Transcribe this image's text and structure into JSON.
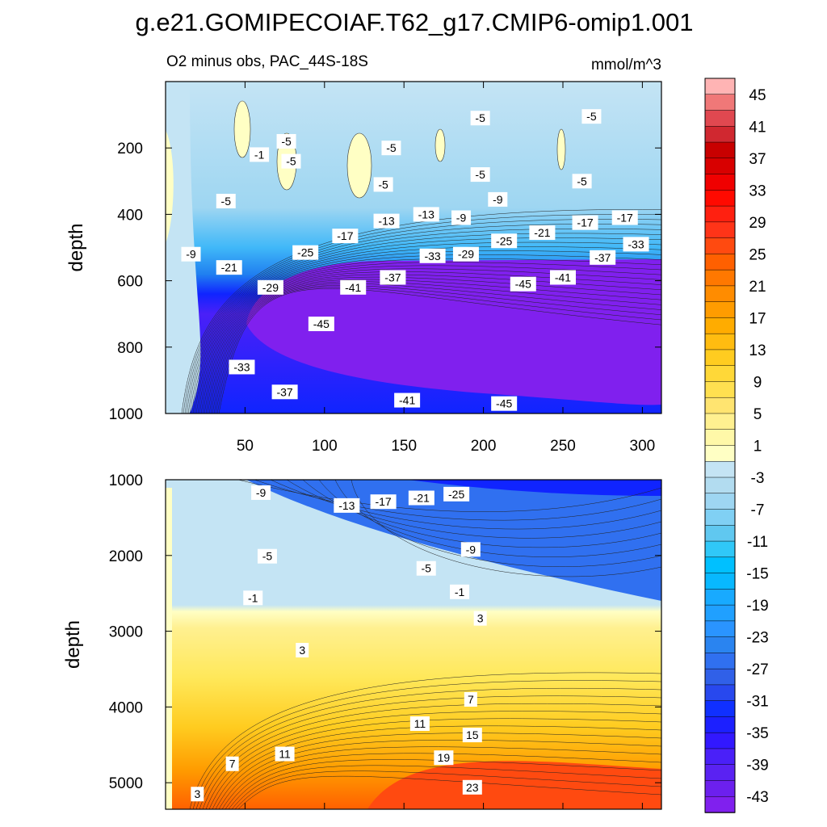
{
  "title": "g.e21.GOMIPECOIAF.T62_g17.CMIP6-omip1.001",
  "panel_left_label": "O2 minus obs, PAC_44S-18S",
  "units_label": "mmol/m^3",
  "colors": {
    "deep_purple": "#8020ee",
    "blue": "#1024ff",
    "light_blue": "#c4e4f4",
    "light_yellow": "#ffffc4",
    "yellow": "#ffe85a",
    "orange": "#ff8c00",
    "red_orange": "#ff4a10"
  },
  "chart_data": [
    {
      "type": "contour",
      "panel": "upper",
      "ylabel": "depth",
      "xlabel": "",
      "xlim": [
        0,
        312
      ],
      "ylim": [
        0,
        1000
      ],
      "y_inverted": true,
      "xticks": [
        50,
        100,
        150,
        200,
        250,
        300
      ],
      "yticks": [
        200,
        400,
        600,
        800,
        1000
      ],
      "contour_labels": [
        {
          "value": "-5",
          "x": 198,
          "y": 110
        },
        {
          "value": "-5",
          "x": 268,
          "y": 105
        },
        {
          "value": "-5",
          "x": 76,
          "y": 180
        },
        {
          "value": "-1",
          "x": 59,
          "y": 220
        },
        {
          "value": "-5",
          "x": 79,
          "y": 240
        },
        {
          "value": "-5",
          "x": 142,
          "y": 200
        },
        {
          "value": "-5",
          "x": 198,
          "y": 280
        },
        {
          "value": "-5",
          "x": 137,
          "y": 310
        },
        {
          "value": "-5",
          "x": 262,
          "y": 300
        },
        {
          "value": "-5",
          "x": 38,
          "y": 360
        },
        {
          "value": "-9",
          "x": 209,
          "y": 355
        },
        {
          "value": "-13",
          "x": 139,
          "y": 420
        },
        {
          "value": "-13",
          "x": 164,
          "y": 400
        },
        {
          "value": "-9",
          "x": 186,
          "y": 410
        },
        {
          "value": "-17",
          "x": 113,
          "y": 465
        },
        {
          "value": "-21",
          "x": 237,
          "y": 455
        },
        {
          "value": "-17",
          "x": 264,
          "y": 425
        },
        {
          "value": "-17",
          "x": 289,
          "y": 410
        },
        {
          "value": "-9",
          "x": 16,
          "y": 520
        },
        {
          "value": "-21",
          "x": 40,
          "y": 560
        },
        {
          "value": "-25",
          "x": 88,
          "y": 515
        },
        {
          "value": "-25",
          "x": 213,
          "y": 480
        },
        {
          "value": "-33",
          "x": 168,
          "y": 525
        },
        {
          "value": "-29",
          "x": 189,
          "y": 520
        },
        {
          "value": "-33",
          "x": 296,
          "y": 490
        },
        {
          "value": "-37",
          "x": 275,
          "y": 530
        },
        {
          "value": "-29",
          "x": 66,
          "y": 620
        },
        {
          "value": "-41",
          "x": 118,
          "y": 620
        },
        {
          "value": "-37",
          "x": 143,
          "y": 590
        },
        {
          "value": "-45",
          "x": 225,
          "y": 610
        },
        {
          "value": "-41",
          "x": 250,
          "y": 590
        },
        {
          "value": "-45",
          "x": 98,
          "y": 730
        },
        {
          "value": "-33",
          "x": 48,
          "y": 860
        },
        {
          "value": "-37",
          "x": 75,
          "y": 935
        },
        {
          "value": "-41",
          "x": 152,
          "y": 960
        },
        {
          "value": "-45",
          "x": 213,
          "y": 970
        }
      ]
    },
    {
      "type": "contour",
      "panel": "lower",
      "ylabel": "depth",
      "xlabel": "",
      "xlim": [
        0,
        312
      ],
      "ylim": [
        1000,
        5350
      ],
      "y_inverted": true,
      "yticks": [
        1000,
        2000,
        3000,
        4000,
        5000
      ],
      "contour_labels": [
        {
          "value": "-9",
          "x": 60,
          "y": 1170
        },
        {
          "value": "-13",
          "x": 114,
          "y": 1340
        },
        {
          "value": "-17",
          "x": 137,
          "y": 1290
        },
        {
          "value": "-21",
          "x": 161,
          "y": 1240
        },
        {
          "value": "-25",
          "x": 183,
          "y": 1190
        },
        {
          "value": "-5",
          "x": 64,
          "y": 2010
        },
        {
          "value": "-5",
          "x": 164,
          "y": 2170
        },
        {
          "value": "-9",
          "x": 192,
          "y": 1920
        },
        {
          "value": "-1",
          "x": 55,
          "y": 2560
        },
        {
          "value": "-1",
          "x": 185,
          "y": 2480
        },
        {
          "value": "3",
          "x": 198,
          "y": 2830
        },
        {
          "value": "3",
          "x": 86,
          "y": 3250
        },
        {
          "value": "7",
          "x": 192,
          "y": 3900
        },
        {
          "value": "11",
          "x": 160,
          "y": 4220
        },
        {
          "value": "15",
          "x": 193,
          "y": 4370
        },
        {
          "value": "11",
          "x": 75,
          "y": 4620
        },
        {
          "value": "19",
          "x": 175,
          "y": 4670
        },
        {
          "value": "7",
          "x": 42,
          "y": 4750
        },
        {
          "value": "23",
          "x": 193,
          "y": 5060
        },
        {
          "value": "3",
          "x": 20,
          "y": 5150
        }
      ]
    }
  ],
  "colorbar": {
    "levels": [
      -45,
      -43,
      -41,
      -39,
      -37,
      -35,
      -33,
      -31,
      -29,
      -27,
      -25,
      -23,
      -21,
      -19,
      -17,
      -15,
      -13,
      -11,
      -9,
      -7,
      -5,
      -3,
      -1,
      1,
      3,
      5,
      7,
      9,
      11,
      13,
      15,
      17,
      19,
      21,
      23,
      25,
      27,
      29,
      31,
      33,
      35,
      37,
      39,
      41,
      43,
      45
    ],
    "colors": [
      "#8020ee",
      "#6c20ee",
      "#5a22f2",
      "#4a20f8",
      "#3218ff",
      "#1c20ff",
      "#1030ff",
      "#2848ee",
      "#3060e8",
      "#3070f0",
      "#2a84f0",
      "#2a94ff",
      "#20a0ff",
      "#18aaff",
      "#08b8ff",
      "#00c0ff",
      "#30c8f8",
      "#60c8f0",
      "#80d0f4",
      "#9ed6f2",
      "#b2dcf0",
      "#c4e4f4",
      "#ffffc4",
      "#fff8a8",
      "#fff090",
      "#ffe470",
      "#ffe050",
      "#ffd838",
      "#ffcc20",
      "#ffbc10",
      "#ffac00",
      "#ff9c00",
      "#ff8c00",
      "#ff7800",
      "#ff6000",
      "#ff4a10",
      "#ff3418",
      "#ff2010",
      "#ff0a00",
      "#f00000",
      "#d80000",
      "#c80000",
      "#d02830",
      "#e04850",
      "#f07878",
      "#ffb4b4"
    ],
    "tick_labels": [
      "45",
      "41",
      "37",
      "33",
      "29",
      "25",
      "21",
      "17",
      "13",
      "9",
      "5",
      "1",
      "-3",
      "-7",
      "-11",
      "-15",
      "-19",
      "-23",
      "-27",
      "-31",
      "-35",
      "-39",
      "-43"
    ]
  }
}
